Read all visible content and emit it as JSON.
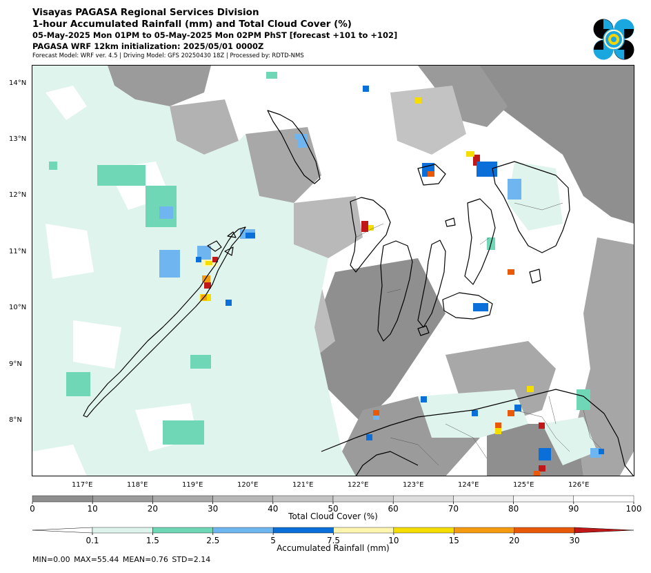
{
  "header": {
    "line1": "Visayas PAGASA Regional Services Division",
    "line2": "1-hour Accumulated Rainfall (mm) and Total Cloud Cover (%)",
    "line3": "05-May-2025 Mon 01PM to 05-May-2025 Mon 02PM PhST [forecast +101 to +102]",
    "line4": "PAGASA WRF 12km initialization: 2025/05/01 0000Z",
    "line5": "Forecast Model: WRF ver. 4.5 | Driving Model: GFS 20250430 18Z | Processed by: RDTD-NMS"
  },
  "logo": {
    "name": "pagasa-seal-logo",
    "colors": {
      "cyan": "#1aa6df",
      "black": "#000000",
      "yellow": "#f5d400"
    }
  },
  "map": {
    "lat_ticks": [
      "14°N",
      "13°N",
      "12°N",
      "11°N",
      "10°N",
      "9°N",
      "8°N"
    ],
    "lon_ticks": [
      "117°E",
      "118°E",
      "119°E",
      "120°E",
      "121°E",
      "122°E",
      "123°E",
      "124°E",
      "125°E",
      "126°E"
    ],
    "lat_range": [
      7.0,
      14.3
    ],
    "lon_range": [
      116.0,
      126.9
    ]
  },
  "cloud_colorbar": {
    "label": "Total Cloud Cover (%)",
    "ticks": [
      "0",
      "10",
      "20",
      "30",
      "40",
      "50",
      "60",
      "70",
      "80",
      "90",
      "100"
    ],
    "colors": [
      "#8f8f8f",
      "#9c9c9c",
      "#a9a9a9",
      "#b7b7b7",
      "#c4c4c4",
      "#d1d1d1",
      "#dedede",
      "#ebebeb",
      "#f6f6f6",
      "#ffffff"
    ]
  },
  "rain_colorbar": {
    "label": "Accumulated Rainfall (mm)",
    "ticks": [
      "0.1",
      "1.5",
      "2.5",
      "5",
      "7.5",
      "10",
      "15",
      "20",
      "30"
    ],
    "colors": [
      "#dff4ec",
      "#6fd6b6",
      "#6fb6f0",
      "#0a6fd8",
      "#fff7b0",
      "#f5dd00",
      "#f59b12",
      "#e85a0a",
      "#c01818"
    ]
  },
  "stats": {
    "text": "MIN=0.00   MAX=55.44   MEAN=0.76   STD=2.14"
  }
}
